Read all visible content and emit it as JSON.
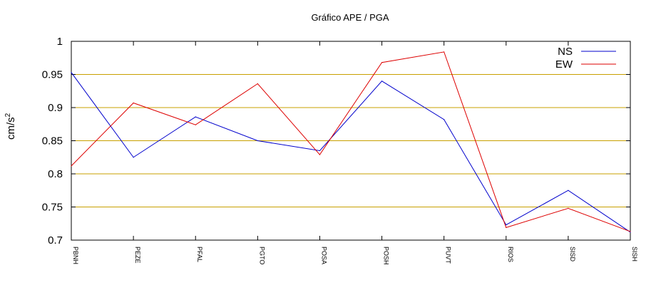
{
  "chart_data": {
    "type": "line",
    "title": "Gráfico  APE / PGA",
    "xlabel": "",
    "ylabel_base": "cm/s",
    "ylabel_sup": "2",
    "categories": [
      "PBNH",
      "PEZE",
      "PFAL",
      "PGTO",
      "POSA",
      "POSH",
      "PUVT",
      "RIOS",
      "SISD",
      "SISH"
    ],
    "ylim": [
      0.7,
      1.0
    ],
    "yticks": [
      0.7,
      0.75,
      0.8,
      0.85,
      0.9,
      0.95,
      1.0
    ],
    "ytick_labels": [
      "0.7",
      "0.75",
      "0.8",
      "0.85",
      "0.9",
      "0.95",
      "1"
    ],
    "grid": "horizontal",
    "grid_color": "#c8a000",
    "legend_position": "top-right",
    "series": [
      {
        "name": "NS",
        "color": "#0000cc",
        "values": [
          0.953,
          0.825,
          0.886,
          0.85,
          0.835,
          0.94,
          0.882,
          0.723,
          0.775,
          0.712
        ]
      },
      {
        "name": "EW",
        "color": "#dd0000",
        "values": [
          0.812,
          0.907,
          0.874,
          0.936,
          0.829,
          0.968,
          0.984,
          0.719,
          0.748,
          0.713
        ]
      }
    ]
  }
}
